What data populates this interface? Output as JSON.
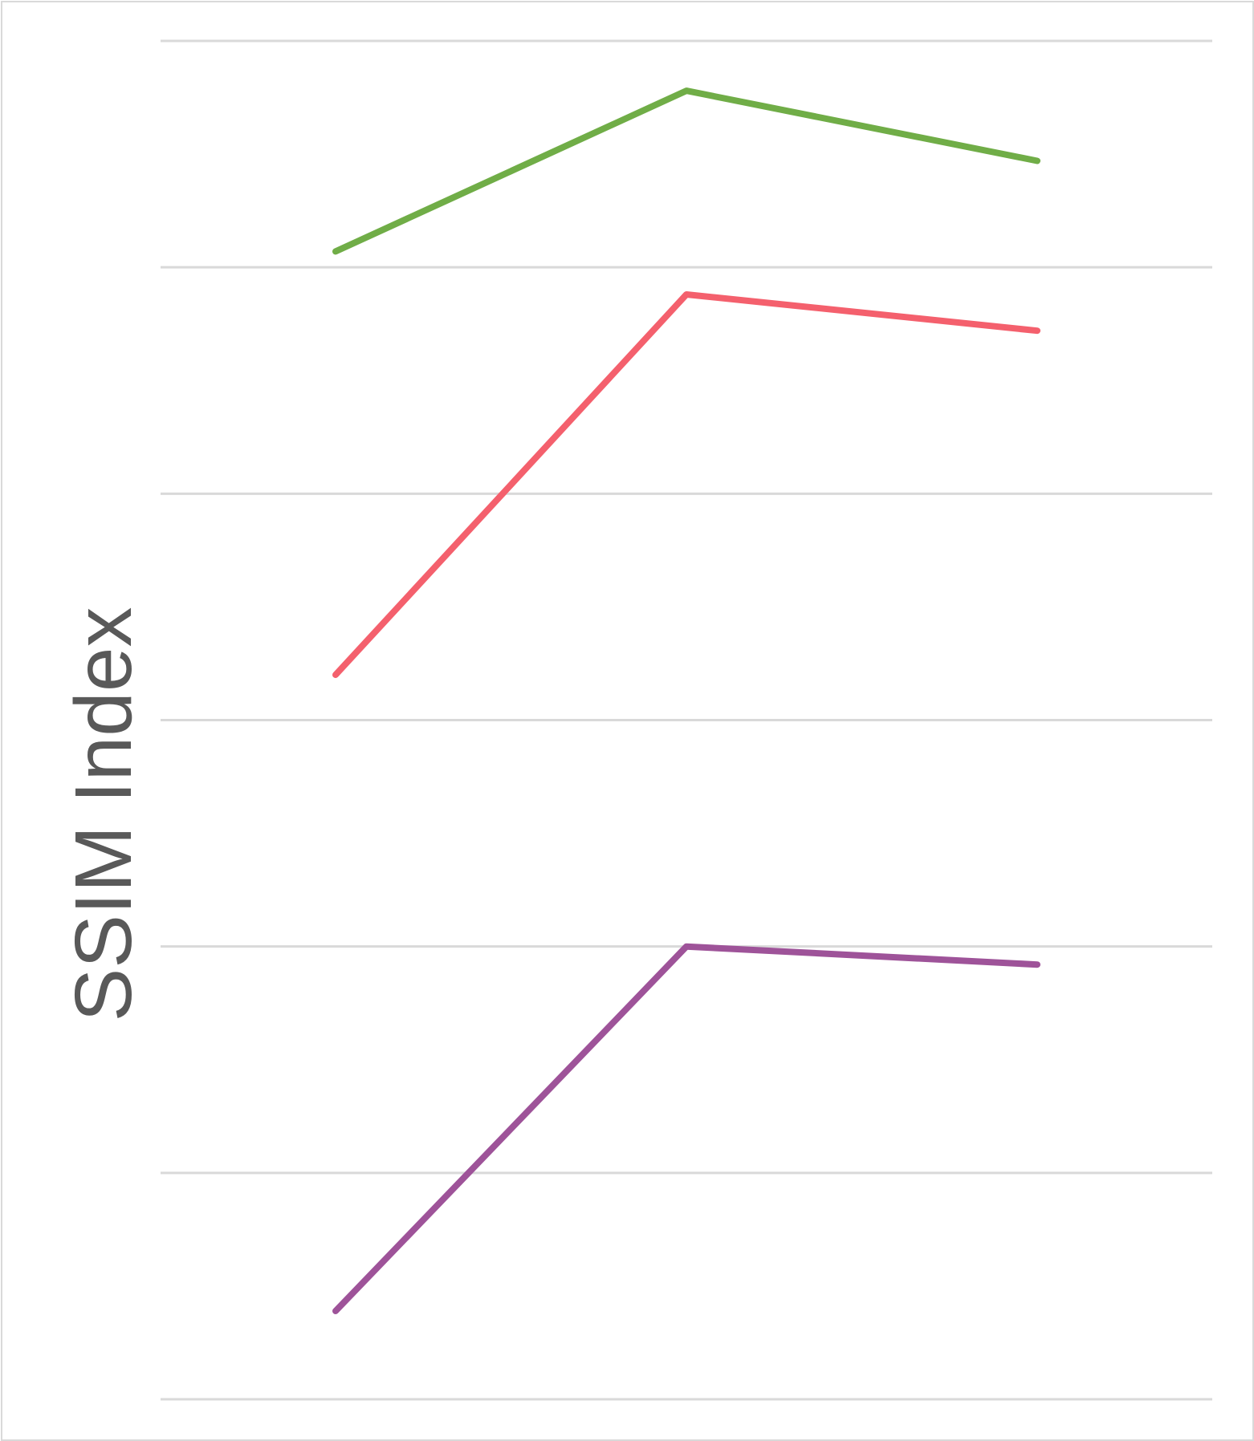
{
  "chart_data": {
    "type": "line",
    "title": "",
    "xlabel": "",
    "ylabel": "SSIM Index",
    "x": [
      1,
      2,
      3
    ],
    "ylim": [
      0,
      6
    ],
    "grid": true,
    "legend": "none",
    "series": [
      {
        "color": "#70ad47",
        "values": [
          5.07,
          5.78,
          5.47
        ]
      },
      {
        "color": "#f4606d",
        "values": [
          3.2,
          4.88,
          4.72
        ]
      },
      {
        "color": "#9e5399",
        "values": [
          0.39,
          2.0,
          1.92
        ]
      }
    ]
  }
}
